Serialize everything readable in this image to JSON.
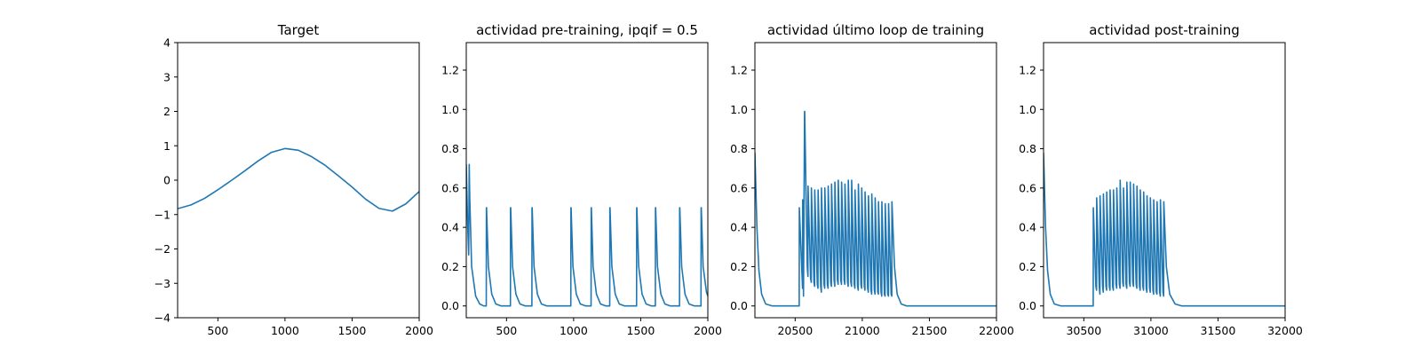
{
  "chart_data": [
    {
      "type": "line",
      "title": "Target",
      "xlabel": "",
      "ylabel": "",
      "xlim": [
        200,
        2000
      ],
      "ylim": [
        -4,
        4
      ],
      "xticks": [
        500,
        1000,
        1500,
        2000
      ],
      "yticks": [
        -4,
        -3,
        -2,
        -1,
        0,
        1,
        2,
        3,
        4
      ],
      "grid": false,
      "color": "#1f77b4",
      "series": [
        {
          "x": [
            200,
            300,
            400,
            500,
            600,
            700,
            800,
            900,
            1000,
            1100,
            1200,
            1300,
            1400,
            1500,
            1600,
            1700,
            1800,
            1900,
            2000
          ],
          "y": [
            -0.83,
            -0.72,
            -0.53,
            -0.28,
            -0.01,
            0.27,
            0.56,
            0.81,
            0.92,
            0.87,
            0.68,
            0.43,
            0.12,
            -0.2,
            -0.55,
            -0.82,
            -0.9,
            -0.69,
            -0.33
          ]
        }
      ]
    },
    {
      "type": "line",
      "title": "actividad pre-training, ipqif = 0.5",
      "xlabel": "",
      "ylabel": "",
      "xlim": [
        200,
        2000
      ],
      "ylim": [
        -0.06,
        1.34
      ],
      "xticks": [
        500,
        1000,
        1500,
        2000
      ],
      "yticks": [
        0.0,
        0.2,
        0.4,
        0.6,
        0.8,
        1.0,
        1.2
      ],
      "ytick_labels": [
        "0.0",
        "0.2",
        "0.4",
        "0.6",
        "0.8",
        "1.0",
        "1.2"
      ],
      "grid": false,
      "color": "#1f77b4",
      "series": [
        {
          "x": [
            200,
            210,
            218,
            222,
            226,
            240,
            270,
            300,
            330,
            349,
            350,
            351,
            365,
            390,
            420,
            460,
            500,
            529,
            530,
            531,
            545,
            570,
            600,
            640,
            689,
            690,
            691,
            705,
            730,
            760,
            800,
            900,
            979,
            980,
            981,
            995,
            1020,
            1050,
            1090,
            1130,
            1131,
            1132,
            1145,
            1170,
            1200,
            1240,
            1269,
            1270,
            1271,
            1285,
            1310,
            1340,
            1380,
            1440,
            1469,
            1470,
            1471,
            1485,
            1510,
            1540,
            1580,
            1609,
            1610,
            1611,
            1625,
            1650,
            1680,
            1720,
            1789,
            1790,
            1791,
            1805,
            1830,
            1860,
            1900,
            1949,
            1950,
            1951,
            1965,
            1990,
            2000
          ],
          "y": [
            0.72,
            0.42,
            0.26,
            0.72,
            0.55,
            0.2,
            0.05,
            0.01,
            0.0,
            0.0,
            0.5,
            0.5,
            0.2,
            0.06,
            0.01,
            0.0,
            0.0,
            0.0,
            0.5,
            0.5,
            0.2,
            0.06,
            0.01,
            0.0,
            0.0,
            0.5,
            0.5,
            0.2,
            0.06,
            0.01,
            0.0,
            0.0,
            0.0,
            0.5,
            0.5,
            0.2,
            0.06,
            0.01,
            0.0,
            0.0,
            0.5,
            0.5,
            0.2,
            0.06,
            0.01,
            0.0,
            0.0,
            0.5,
            0.5,
            0.2,
            0.06,
            0.01,
            0.0,
            0.0,
            0.0,
            0.5,
            0.5,
            0.2,
            0.06,
            0.01,
            0.0,
            0.0,
            0.5,
            0.5,
            0.2,
            0.06,
            0.01,
            0.0,
            0.0,
            0.5,
            0.5,
            0.2,
            0.06,
            0.01,
            0.0,
            0.0,
            0.5,
            0.5,
            0.2,
            0.07,
            0.05
          ]
        }
      ]
    },
    {
      "type": "line",
      "title": "actividad último loop de training",
      "xlabel": "",
      "ylabel": "",
      "xlim": [
        20200,
        22000
      ],
      "ylim": [
        -0.06,
        1.34
      ],
      "xticks": [
        20500,
        21000,
        21500,
        22000
      ],
      "yticks": [
        0.0,
        0.2,
        0.4,
        0.6,
        0.8,
        1.0,
        1.2
      ],
      "ytick_labels": [
        "0.0",
        "0.2",
        "0.4",
        "0.6",
        "0.8",
        "1.0",
        "1.2"
      ],
      "grid": false,
      "color": "#1f77b4",
      "series": [
        {
          "x": [
            20200,
            20215,
            20230,
            20250,
            20280,
            20330,
            20400,
            20530,
            20531,
            20555,
            20556,
            20562,
            20570,
            20571,
            20590,
            20595,
            20596,
            20615,
            20620,
            20621,
            20640,
            20645,
            20646,
            20665,
            20670,
            20671,
            20690,
            20695,
            20696,
            20715,
            20720,
            20721,
            20740,
            20745,
            20746,
            20765,
            20770,
            20771,
            20790,
            20795,
            20796,
            20815,
            20820,
            20821,
            20840,
            20845,
            20846,
            20865,
            20870,
            20871,
            20890,
            20895,
            20896,
            20915,
            20920,
            20921,
            20940,
            20945,
            20946,
            20965,
            20970,
            20971,
            20990,
            20995,
            20996,
            21015,
            21020,
            21021,
            21040,
            21045,
            21046,
            21065,
            21070,
            21071,
            21090,
            21095,
            21096,
            21115,
            21120,
            21121,
            21140,
            21145,
            21146,
            21165,
            21170,
            21171,
            21190,
            21195,
            21196,
            21215,
            21220,
            21221,
            21240,
            21260,
            21290,
            21330,
            21400,
            21500,
            21600,
            21800,
            22000
          ],
          "y": [
            0.78,
            0.4,
            0.18,
            0.06,
            0.01,
            0.0,
            0.0,
            0.0,
            0.5,
            0.09,
            0.54,
            0.05,
            0.99,
            0.99,
            0.2,
            0.15,
            0.61,
            0.14,
            0.12,
            0.6,
            0.12,
            0.1,
            0.59,
            0.11,
            0.09,
            0.59,
            0.1,
            0.07,
            0.6,
            0.11,
            0.09,
            0.6,
            0.11,
            0.09,
            0.61,
            0.12,
            0.1,
            0.62,
            0.13,
            0.1,
            0.63,
            0.13,
            0.11,
            0.64,
            0.13,
            0.11,
            0.63,
            0.13,
            0.11,
            0.62,
            0.12,
            0.1,
            0.64,
            0.12,
            0.1,
            0.64,
            0.11,
            0.09,
            0.59,
            0.1,
            0.08,
            0.62,
            0.11,
            0.09,
            0.6,
            0.1,
            0.08,
            0.58,
            0.09,
            0.07,
            0.56,
            0.08,
            0.06,
            0.57,
            0.08,
            0.06,
            0.55,
            0.07,
            0.06,
            0.53,
            0.07,
            0.05,
            0.53,
            0.06,
            0.05,
            0.52,
            0.06,
            0.05,
            0.52,
            0.06,
            0.05,
            0.53,
            0.2,
            0.06,
            0.01,
            0.0,
            0.0,
            0.0,
            0.0,
            0.0,
            0.0
          ]
        }
      ]
    },
    {
      "type": "line",
      "title": "actividad post-training",
      "xlabel": "",
      "ylabel": "",
      "xlim": [
        30200,
        32000
      ],
      "ylim": [
        -0.06,
        1.34
      ],
      "xticks": [
        30500,
        31000,
        31500,
        32000
      ],
      "yticks": [
        0.0,
        0.2,
        0.4,
        0.6,
        0.8,
        1.0,
        1.2
      ],
      "ytick_labels": [
        "0.0",
        "0.2",
        "0.4",
        "0.6",
        "0.8",
        "1.0",
        "1.2"
      ],
      "grid": false,
      "color": "#1f77b4",
      "series": [
        {
          "x": [
            30200,
            30215,
            30230,
            30250,
            30280,
            30330,
            30400,
            30570,
            30571,
            30590,
            30595,
            30596,
            30615,
            30620,
            30621,
            30640,
            30645,
            30646,
            30665,
            30670,
            30671,
            30690,
            30695,
            30696,
            30715,
            30720,
            30721,
            30740,
            30745,
            30746,
            30765,
            30770,
            30771,
            30790,
            30795,
            30796,
            30815,
            30820,
            30821,
            30840,
            30845,
            30846,
            30865,
            30870,
            30871,
            30890,
            30895,
            30896,
            30915,
            30920,
            30921,
            30940,
            30945,
            30946,
            30965,
            30970,
            30971,
            30990,
            30995,
            30996,
            31015,
            31020,
            31021,
            31040,
            31045,
            31046,
            31065,
            31070,
            31071,
            31090,
            31095,
            31096,
            31115,
            31140,
            31180,
            31230,
            31300,
            31500,
            31800,
            32000
          ],
          "y": [
            0.78,
            0.4,
            0.18,
            0.06,
            0.01,
            0.0,
            0.0,
            0.0,
            0.5,
            0.1,
            0.08,
            0.55,
            0.1,
            0.06,
            0.56,
            0.1,
            0.07,
            0.57,
            0.1,
            0.08,
            0.58,
            0.1,
            0.08,
            0.59,
            0.1,
            0.08,
            0.59,
            0.11,
            0.09,
            0.6,
            0.11,
            0.09,
            0.64,
            0.12,
            0.1,
            0.6,
            0.11,
            0.09,
            0.63,
            0.12,
            0.1,
            0.63,
            0.12,
            0.1,
            0.62,
            0.11,
            0.09,
            0.61,
            0.1,
            0.08,
            0.59,
            0.1,
            0.08,
            0.58,
            0.09,
            0.07,
            0.56,
            0.09,
            0.07,
            0.55,
            0.08,
            0.06,
            0.54,
            0.07,
            0.06,
            0.53,
            0.07,
            0.05,
            0.54,
            0.07,
            0.05,
            0.53,
            0.2,
            0.06,
            0.01,
            0.0,
            0.0,
            0.0,
            0.0,
            0.0
          ]
        }
      ]
    }
  ]
}
